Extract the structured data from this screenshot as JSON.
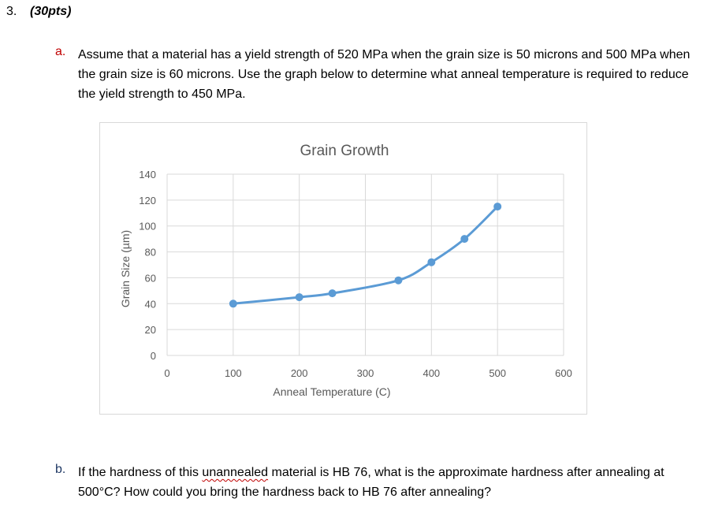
{
  "question": {
    "number": "3.",
    "points": "(30pts)"
  },
  "part_a": {
    "label": "a.",
    "text": "Assume that a material has a yield strength of 520 MPa when the grain size is 50 microns and 500 MPa when the grain size is 60 microns. Use the graph below to determine what anneal temperature is required to reduce the yield strength to 450 MPa."
  },
  "part_b": {
    "label": "b.",
    "text_before": "If the hardness of this ",
    "flagged_word": "unannealed",
    "text_after": " material is HB 76, what is the approximate hardness after annealing at 500°C? How could you bring the hardness back to HB 76 after annealing?"
  },
  "colors": {
    "series": "#5b9bd5",
    "grid": "#d9d9d9",
    "text": "#595959",
    "label_a": "#c00000",
    "label_b": "#1f3864"
  },
  "chart_data": {
    "type": "line",
    "title": "Grain Growth",
    "xlabel": "Anneal Temperature (C)",
    "ylabel": "Grain Size (µm)",
    "xlim": [
      0,
      600
    ],
    "ylim": [
      0,
      140
    ],
    "xticks": [
      0,
      100,
      200,
      300,
      400,
      500,
      600
    ],
    "yticks": [
      0,
      20,
      40,
      60,
      80,
      100,
      120,
      140
    ],
    "grid": true,
    "smooth": true,
    "marker": "circle",
    "series": [
      {
        "x": [
          100,
          200,
          250,
          350,
          400,
          450,
          500
        ],
        "y": [
          40,
          45,
          48,
          58,
          72,
          90,
          115
        ]
      }
    ]
  }
}
